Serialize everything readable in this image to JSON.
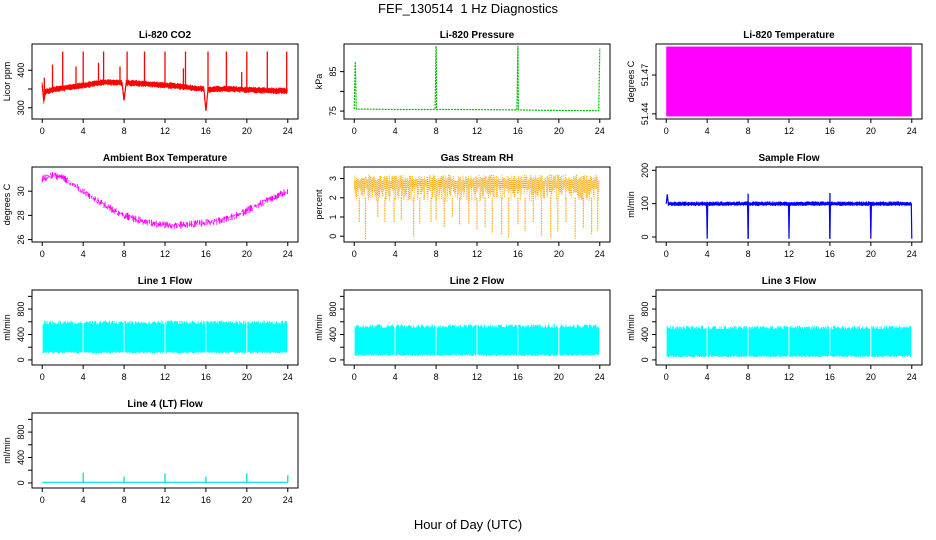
{
  "figure": {
    "title": "FEF_130514  1 Hz Diagnostics",
    "xlabel": "Hour of Day (UTC)"
  },
  "chart_data": [
    {
      "type": "line",
      "title": "Li-820 CO2",
      "ylabel": "Licor ppm",
      "color": "#ff0000",
      "xlim": [
        -1,
        25
      ],
      "ylim": [
        270,
        470
      ],
      "xticks": [
        0,
        4,
        8,
        12,
        16,
        20,
        24
      ],
      "yticks": [
        300,
        350,
        400
      ],
      "ytick_labels": [
        "300",
        "",
        "400"
      ],
      "series": [
        {
          "x": [
            0,
            0.15,
            0.3,
            1,
            2,
            3,
            4,
            5,
            6,
            7,
            7.8,
            8,
            8.2,
            9,
            10,
            11,
            12,
            13,
            14,
            15,
            15.8,
            16,
            16.2,
            17,
            18,
            19,
            20,
            21,
            22,
            23,
            23.8,
            24
          ],
          "y": [
            360,
            318,
            342,
            348,
            352,
            356,
            360,
            364,
            368,
            368,
            366,
            320,
            366,
            366,
            364,
            362,
            360,
            358,
            355,
            352,
            350,
            292,
            348,
            350,
            350,
            349,
            348,
            347,
            346,
            345,
            345,
            345
          ]
        }
      ],
      "spikes": [
        {
          "x": 0.2,
          "y": 380
        },
        {
          "x": 1,
          "y": 415
        },
        {
          "x": 2,
          "y": 450
        },
        {
          "x": 3.3,
          "y": 410
        },
        {
          "x": 4,
          "y": 450
        },
        {
          "x": 5.5,
          "y": 420
        },
        {
          "x": 6,
          "y": 450
        },
        {
          "x": 7.6,
          "y": 410
        },
        {
          "x": 8.3,
          "y": 450
        },
        {
          "x": 10,
          "y": 450
        },
        {
          "x": 12,
          "y": 450
        },
        {
          "x": 13.8,
          "y": 405
        },
        {
          "x": 14,
          "y": 450
        },
        {
          "x": 16.2,
          "y": 450
        },
        {
          "x": 18,
          "y": 450
        },
        {
          "x": 19.5,
          "y": 395
        },
        {
          "x": 20,
          "y": 450
        },
        {
          "x": 22,
          "y": 450
        },
        {
          "x": 23.9,
          "y": 450
        }
      ]
    },
    {
      "type": "line",
      "title": "Li-820 Pressure",
      "ylabel": "kPa",
      "color": "#00bb00",
      "xlim": [
        -1,
        25
      ],
      "ylim": [
        73,
        92
      ],
      "xticks": [
        0,
        4,
        8,
        12,
        16,
        20,
        24
      ],
      "yticks": [
        75,
        80,
        85
      ],
      "ytick_labels": [
        "75",
        "",
        "85"
      ],
      "series": [
        {
          "x": [
            0,
            0.1,
            0.2,
            0.3,
            1,
            4,
            7.9,
            8,
            8.05,
            8.1,
            10,
            15.9,
            16,
            16.05,
            16.1,
            18,
            23.9,
            24
          ],
          "y": [
            75.5,
            87.5,
            75.5,
            75.5,
            75.5,
            75.4,
            75.4,
            91.5,
            75.4,
            75.4,
            75.4,
            75.3,
            91.5,
            75.3,
            75.3,
            75.2,
            75.1,
            91
          ]
        }
      ]
    },
    {
      "type": "area",
      "title": "Li-820 Temperature",
      "ylabel": "degrees C",
      "color": "#ff00ff",
      "xlim": [
        -1,
        25
      ],
      "ylim": [
        51.436,
        51.494
      ],
      "xticks": [
        0,
        4,
        8,
        12,
        16,
        20,
        24
      ],
      "yticks": [
        51.44,
        51.47
      ],
      "ytick_labels": [
        "51.44",
        "51.47"
      ],
      "series": [
        {
          "x": [
            0,
            24
          ],
          "ymin": [
            51.438,
            51.438
          ],
          "ymax": [
            51.492,
            51.492
          ]
        }
      ]
    },
    {
      "type": "line",
      "title": "Ambient Box Temperature",
      "ylabel": "degrees C",
      "color": "#ff00ff",
      "xlim": [
        -1,
        25
      ],
      "ylim": [
        25.8,
        32
      ],
      "xticks": [
        0,
        4,
        8,
        12,
        16,
        20,
        24
      ],
      "yticks": [
        26,
        28,
        30
      ],
      "ytick_labels": [
        "26",
        "28",
        "30"
      ],
      "series": [
        {
          "x": [
            0,
            1,
            2,
            3,
            4,
            5,
            6,
            7,
            8,
            9,
            10,
            11,
            12,
            13,
            14,
            15,
            16,
            17,
            18,
            19,
            20,
            21,
            22,
            23,
            24
          ],
          "y": [
            31.0,
            31.3,
            31.1,
            30.6,
            30.0,
            29.4,
            28.9,
            28.4,
            28.0,
            27.7,
            27.5,
            27.3,
            27.2,
            27.2,
            27.2,
            27.3,
            27.4,
            27.5,
            27.7,
            28.0,
            28.4,
            28.8,
            29.2,
            29.6,
            30.0
          ],
          "noise": 0.45
        }
      ]
    },
    {
      "type": "line",
      "title": "Gas Stream RH",
      "ylabel": "percent",
      "color": "#ffa500",
      "xlim": [
        -1,
        25
      ],
      "ylim": [
        -0.3,
        3.6
      ],
      "xticks": [
        0,
        4,
        8,
        12,
        16,
        20,
        24
      ],
      "yticks": [
        0,
        1,
        2,
        3
      ],
      "ytick_labels": [
        "0",
        "1",
        "2",
        "3"
      ],
      "series": [
        {
          "x": [
            0,
            24
          ],
          "ymin": [
            1.8,
            1.8
          ],
          "ymax": [
            3.2,
            3.2
          ]
        }
      ],
      "dips": [
        0.5,
        1.1,
        2.3,
        3.0,
        3.9,
        4.6,
        5.8,
        6.4,
        7.5,
        8.0,
        8.8,
        9.6,
        10.3,
        11.2,
        12.0,
        12.8,
        13.5,
        14.4,
        15.1,
        16.0,
        16.7,
        17.5,
        18.3,
        19.2,
        19.9,
        20.7,
        21.6,
        22.4,
        23.2,
        23.8
      ]
    },
    {
      "type": "line",
      "title": "Sample Flow",
      "ylabel": "ml/min",
      "color": "#0000ff",
      "xlim": [
        -1,
        25
      ],
      "ylim": [
        -15,
        210
      ],
      "xticks": [
        0,
        4,
        8,
        12,
        16,
        20,
        24
      ],
      "yticks": [
        0,
        100,
        200
      ],
      "ytick_labels": [
        "0",
        "100",
        "200"
      ],
      "series": [
        {
          "x": [
            0,
            0.1,
            0.2,
            1,
            3.95,
            4,
            4.05,
            7.95,
            8,
            8.05,
            11.95,
            12,
            12.05,
            15.95,
            16,
            16.05,
            19.95,
            20,
            20.05,
            23.95,
            24
          ],
          "y": [
            100,
            128,
            100,
            100,
            100,
            -5,
            100,
            100,
            -5,
            100,
            100,
            -5,
            100,
            100,
            -5,
            100,
            100,
            -5,
            100,
            100,
            -5
          ]
        }
      ],
      "spikes": [
        {
          "x": 8,
          "y": 130
        },
        {
          "x": 16,
          "y": 132
        }
      ]
    },
    {
      "type": "area",
      "title": "Line 1 Flow",
      "ylabel": "ml/min",
      "color": "#00ffff",
      "xlim": [
        -1,
        25
      ],
      "ylim": [
        -80,
        1100
      ],
      "xticks": [
        0,
        4,
        8,
        12,
        16,
        20,
        24
      ],
      "yticks": [
        0,
        200,
        400,
        600,
        800,
        1000
      ],
      "ytick_labels": [
        "0",
        "",
        "400",
        "",
        "800",
        ""
      ],
      "series": [
        {
          "x": [
            0,
            24
          ],
          "ymin": [
            100,
            100
          ],
          "ymax": [
            620,
            620
          ]
        }
      ],
      "gaps": [
        4,
        8,
        12,
        16,
        20
      ]
    },
    {
      "type": "area",
      "title": "Line 2 Flow",
      "ylabel": "ml/min",
      "color": "#00ffff",
      "xlim": [
        -1,
        25
      ],
      "ylim": [
        -80,
        1100
      ],
      "xticks": [
        0,
        4,
        8,
        12,
        16,
        20,
        24
      ],
      "yticks": [
        0,
        200,
        400,
        600,
        800,
        1000
      ],
      "ytick_labels": [
        "0",
        "",
        "400",
        "",
        "800",
        ""
      ],
      "series": [
        {
          "x": [
            0,
            24
          ],
          "ymin": [
            60,
            60
          ],
          "ymax": [
            560,
            560
          ]
        }
      ],
      "gaps": [
        4,
        8,
        12,
        16,
        20
      ]
    },
    {
      "type": "area",
      "title": "Line 3 Flow",
      "ylabel": "ml/min",
      "color": "#00ffff",
      "xlim": [
        -1,
        25
      ],
      "ylim": [
        -80,
        1100
      ],
      "xticks": [
        0,
        4,
        8,
        12,
        16,
        20,
        24
      ],
      "yticks": [
        0,
        200,
        400,
        600,
        800,
        1000
      ],
      "ytick_labels": [
        "0",
        "",
        "400",
        "",
        "800",
        ""
      ],
      "series": [
        {
          "x": [
            0,
            24
          ],
          "ymin": [
            40,
            40
          ],
          "ymax": [
            540,
            540
          ]
        }
      ],
      "gaps": [
        4,
        8,
        12,
        16,
        20
      ]
    },
    {
      "type": "line",
      "title": "Line 4 (LT) Flow",
      "ylabel": "ml/min",
      "color": "#00dddd",
      "xlim": [
        -1,
        25
      ],
      "ylim": [
        -80,
        1100
      ],
      "xticks": [
        0,
        4,
        8,
        12,
        16,
        20,
        24
      ],
      "yticks": [
        0,
        200,
        400,
        600,
        800,
        1000
      ],
      "ytick_labels": [
        "0",
        "",
        "400",
        "",
        "800",
        ""
      ],
      "series": [
        {
          "x": [
            0,
            24
          ],
          "y": [
            10,
            10
          ]
        }
      ],
      "spikes": [
        {
          "x": 4,
          "y": 160
        },
        {
          "x": 8,
          "y": 100
        },
        {
          "x": 12,
          "y": 150
        },
        {
          "x": 16,
          "y": 100
        },
        {
          "x": 20,
          "y": 150
        },
        {
          "x": 24,
          "y": 120
        }
      ]
    }
  ]
}
